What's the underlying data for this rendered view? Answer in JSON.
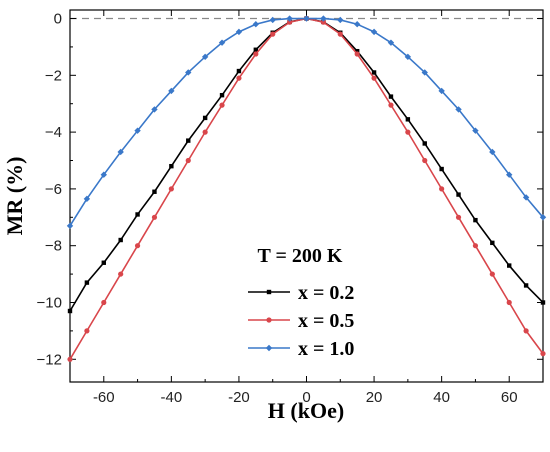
{
  "chart_data": {
    "type": "line",
    "xlabel": "H (kOe)",
    "ylabel": "MR (%)",
    "xlim": [
      -70,
      70
    ],
    "ylim": [
      -12.8,
      0.3
    ],
    "xticks": [
      -60,
      -40,
      -20,
      0,
      20,
      40,
      60
    ],
    "yticks": [
      0,
      -2,
      -4,
      -6,
      -8,
      -10,
      -12
    ],
    "xtick_labels": [
      "-60",
      "-40",
      "-20",
      "0",
      "20",
      "40",
      "60"
    ],
    "ytick_labels": [
      "0",
      "−2",
      "−4",
      "−6",
      "−8",
      "−10",
      "−12"
    ],
    "reference_line_y": 0,
    "legend_title": "T = 200 K",
    "legend_position": "bottom-center",
    "x": [
      -70,
      -65,
      -60,
      -55,
      -50,
      -45,
      -40,
      -35,
      -30,
      -25,
      -20,
      -15,
      -10,
      -5,
      0,
      5,
      10,
      15,
      20,
      25,
      30,
      35,
      40,
      45,
      50,
      55,
      60,
      65,
      70
    ],
    "series": [
      {
        "name": "x = 0.2",
        "color": "#000000",
        "marker": "square",
        "values": [
          -10.3,
          -9.3,
          -8.6,
          -7.8,
          -6.9,
          -6.1,
          -5.2,
          -4.3,
          -3.5,
          -2.7,
          -1.85,
          -1.1,
          -0.5,
          -0.12,
          0.0,
          -0.12,
          -0.5,
          -1.15,
          -1.9,
          -2.75,
          -3.55,
          -4.4,
          -5.3,
          -6.2,
          -7.1,
          -7.9,
          -8.7,
          -9.4,
          -10.0
        ]
      },
      {
        "name": "x = 0.5",
        "color": "#d9464b",
        "marker": "circle",
        "values": [
          -12.0,
          -11.0,
          -10.0,
          -9.0,
          -8.0,
          -7.0,
          -6.0,
          -5.0,
          -4.0,
          -3.05,
          -2.1,
          -1.25,
          -0.55,
          -0.13,
          0.0,
          -0.13,
          -0.55,
          -1.25,
          -2.1,
          -3.05,
          -4.0,
          -5.0,
          -6.0,
          -7.0,
          -8.0,
          -9.0,
          -10.0,
          -11.0,
          -11.8
        ]
      },
      {
        "name": "x = 1.0",
        "color": "#3a78c9",
        "marker": "diamond",
        "values": [
          -7.3,
          -6.35,
          -5.5,
          -4.7,
          -3.95,
          -3.2,
          -2.55,
          -1.9,
          -1.35,
          -0.85,
          -0.47,
          -0.2,
          -0.05,
          0.0,
          0.0,
          0.0,
          -0.05,
          -0.2,
          -0.47,
          -0.85,
          -1.35,
          -1.9,
          -2.55,
          -3.2,
          -3.95,
          -4.7,
          -5.5,
          -6.3,
          -7.0
        ]
      }
    ]
  }
}
